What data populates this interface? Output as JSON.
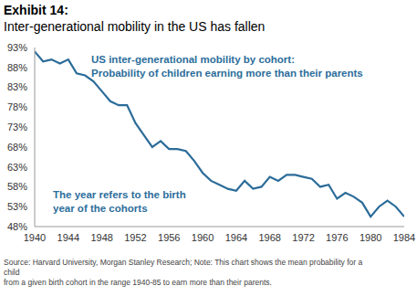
{
  "chart_data": {
    "type": "line",
    "title": "Exhibit 14:",
    "subtitle": "Inter-generational mobility in the US has fallen",
    "annotations": [
      [
        "US inter-generational mobility by cohort:",
        "Probability of children earning more than their parents"
      ],
      [
        "The year refers to the birth",
        "year of the cohorts"
      ]
    ],
    "source": [
      "Source: Harvard University, Morgan Stanley Research; Note: This chart shows the mean probability for a",
      "child",
      "from a given birth cohort in the range 1940-85 to earn more than their parents."
    ],
    "x": [
      1940,
      1941,
      1942,
      1943,
      1944,
      1945,
      1946,
      1947,
      1948,
      1949,
      1950,
      1951,
      1952,
      1953,
      1954,
      1955,
      1956,
      1957,
      1958,
      1959,
      1960,
      1961,
      1962,
      1963,
      1964,
      1965,
      1966,
      1967,
      1968,
      1969,
      1970,
      1971,
      1972,
      1973,
      1974,
      1975,
      1976,
      1977,
      1978,
      1979,
      1980,
      1981,
      1982,
      1983,
      1984
    ],
    "values": [
      92,
      89.5,
      90,
      89,
      90,
      86.5,
      86,
      84.5,
      82,
      79.5,
      78.5,
      78.5,
      74,
      71,
      68,
      69.5,
      67.5,
      67.5,
      67,
      64.5,
      61.5,
      59.5,
      58.5,
      57.5,
      57,
      59.5,
      57.5,
      58,
      60.5,
      59.5,
      61,
      61,
      60.5,
      60,
      58,
      58.5,
      55,
      56.5,
      55.5,
      54,
      50.5,
      53,
      54.5,
      53,
      50.5
    ],
    "color": "#2b6c99",
    "xlim": [
      1940,
      1984
    ],
    "xticks": [
      1940,
      1944,
      1948,
      1952,
      1956,
      1960,
      1964,
      1968,
      1972,
      1976,
      1980,
      1984
    ],
    "ylim": [
      48,
      93
    ],
    "yticks": [
      {
        "value": 48,
        "label": "48%"
      },
      {
        "value": 53,
        "label": "53%"
      },
      {
        "value": 58,
        "label": "58%"
      },
      {
        "value": 63,
        "label": "63%"
      },
      {
        "value": 68,
        "label": "68%"
      },
      {
        "value": 73,
        "label": "73%"
      },
      {
        "value": 78,
        "label": "78%"
      },
      {
        "value": 83,
        "label": "83%"
      },
      {
        "value": 88,
        "label": "88%"
      },
      {
        "value": 93,
        "label": "93%"
      }
    ],
    "grid": false
  }
}
